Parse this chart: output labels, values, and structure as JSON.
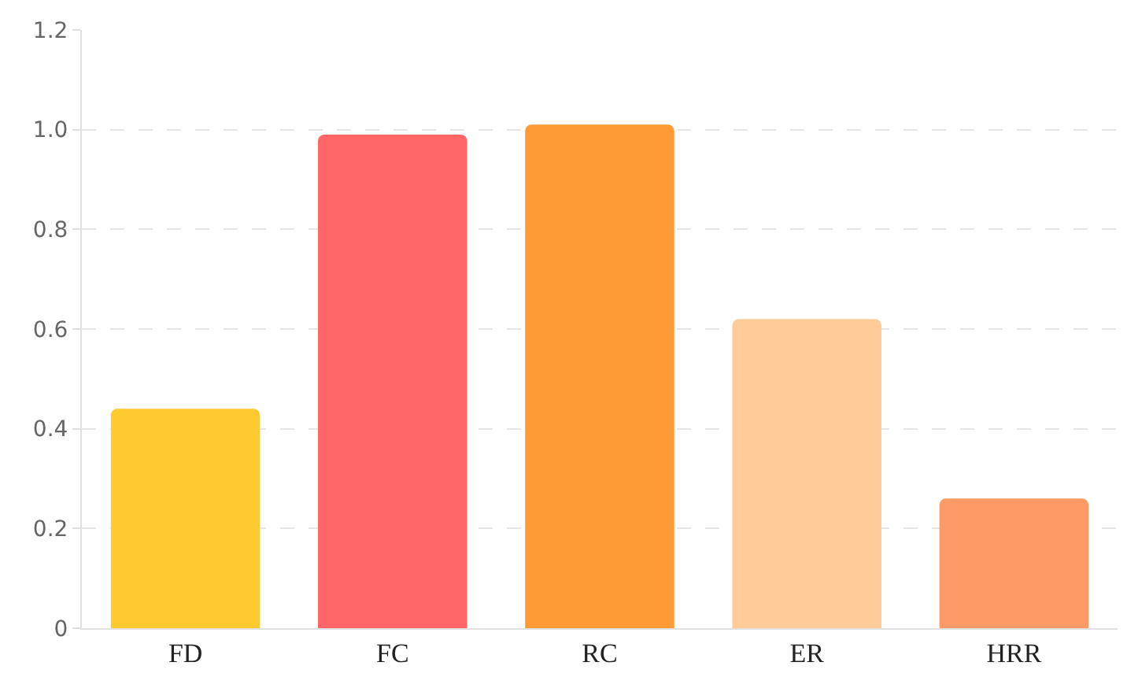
{
  "chart_data": {
    "type": "bar",
    "categories": [
      "FD",
      "FC",
      "RC",
      "ER",
      "HRR"
    ],
    "values": [
      0.44,
      0.99,
      1.01,
      0.62,
      0.26
    ],
    "colors": [
      "#fdca30",
      "#fe6668",
      "#fe9b37",
      "#fecb99",
      "#fe9a66"
    ],
    "ylim": [
      0,
      1.2
    ],
    "yticks": [
      0,
      {
        "value": 0.2,
        "label": "0.2"
      },
      {
        "value": 0.4,
        "label": "0.4"
      },
      {
        "value": 0.6,
        "label": "0.6"
      },
      {
        "value": 0.8,
        "label": "0.8"
      },
      {
        "value": 1.0,
        "label": "1.0"
      },
      {
        "value": 1.2,
        "label": "1.2"
      }
    ],
    "grid": "y"
  }
}
